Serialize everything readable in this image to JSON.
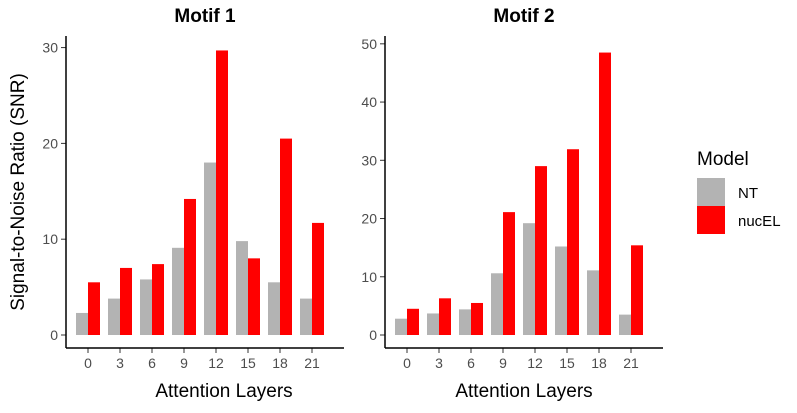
{
  "chart_data": [
    {
      "type": "bar",
      "title": "Motif 1",
      "xlabel": "Attention Layers",
      "ylabel": "Signal-to-Noise Ratio (SNR)",
      "categories": [
        "0",
        "3",
        "6",
        "9",
        "12",
        "15",
        "18",
        "21"
      ],
      "ylim": [
        0,
        31
      ],
      "yticks": [
        0,
        10,
        20,
        30
      ],
      "series": [
        {
          "name": "NT",
          "color": "#b3b3b3",
          "values": [
            2.3,
            3.8,
            5.8,
            9.1,
            18.0,
            9.8,
            5.5,
            3.8
          ]
        },
        {
          "name": "nucEL",
          "color": "#ff0000",
          "values": [
            5.5,
            7.0,
            7.4,
            14.2,
            29.7,
            8.0,
            20.5,
            11.7
          ]
        }
      ]
    },
    {
      "type": "bar",
      "title": "Motif 2",
      "xlabel": "Attention Layers",
      "ylabel": "",
      "categories": [
        "0",
        "3",
        "6",
        "9",
        "12",
        "15",
        "18",
        "21"
      ],
      "ylim": [
        0,
        51
      ],
      "yticks": [
        0,
        10,
        20,
        30,
        40,
        50
      ],
      "series": [
        {
          "name": "NT",
          "color": "#b3b3b3",
          "values": [
            2.8,
            3.7,
            4.4,
            10.6,
            19.2,
            15.2,
            11.1,
            3.5
          ]
        },
        {
          "name": "nucEL",
          "color": "#ff0000",
          "values": [
            4.5,
            6.3,
            5.5,
            21.1,
            29.0,
            31.9,
            48.5,
            15.4
          ]
        }
      ]
    }
  ],
  "legend": {
    "title": "Model",
    "items": [
      {
        "label": "NT",
        "color": "#b3b3b3"
      },
      {
        "label": "nucEL",
        "color": "#ff0000"
      }
    ]
  }
}
